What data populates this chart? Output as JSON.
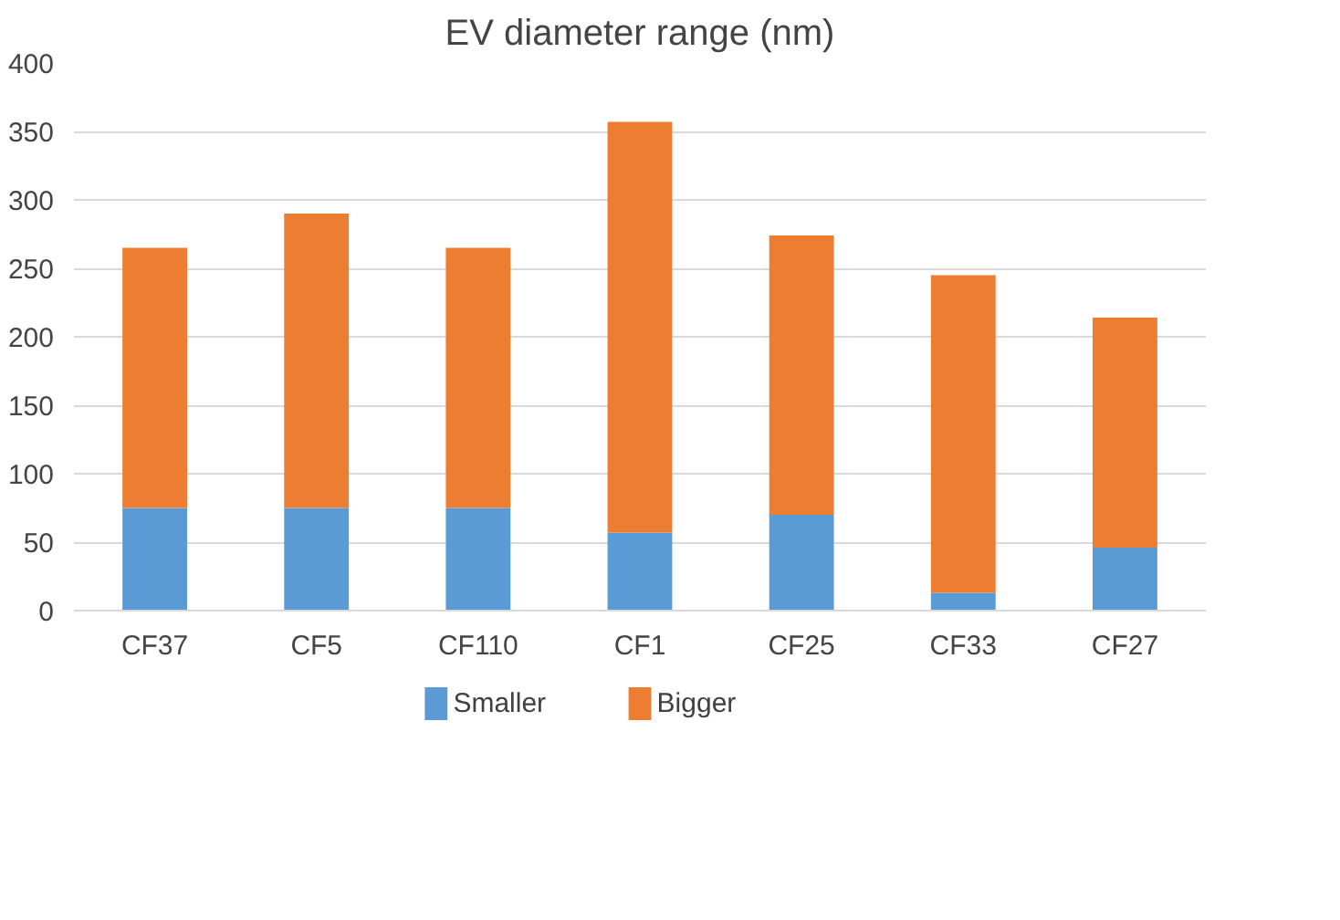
{
  "chart_data": {
    "type": "bar",
    "title": "EV diameter range (nm)",
    "stacked": true,
    "categories": [
      "CF37",
      "CF5",
      "CF110",
      "CF1",
      "CF25",
      "CF33",
      "CF27"
    ],
    "series": [
      {
        "name": "Smaller",
        "color": "#5b9bd5",
        "values": [
          75,
          75,
          75,
          57,
          70,
          13,
          46
        ]
      },
      {
        "name": "Bigger",
        "color": "#ed7d31",
        "values": [
          190,
          215,
          190,
          300,
          204,
          232,
          168
        ]
      }
    ],
    "ylim": [
      0,
      400
    ],
    "yticks": [
      0,
      50,
      100,
      150,
      200,
      250,
      300,
      350,
      400
    ],
    "grid": "y",
    "legend": "bottom"
  }
}
